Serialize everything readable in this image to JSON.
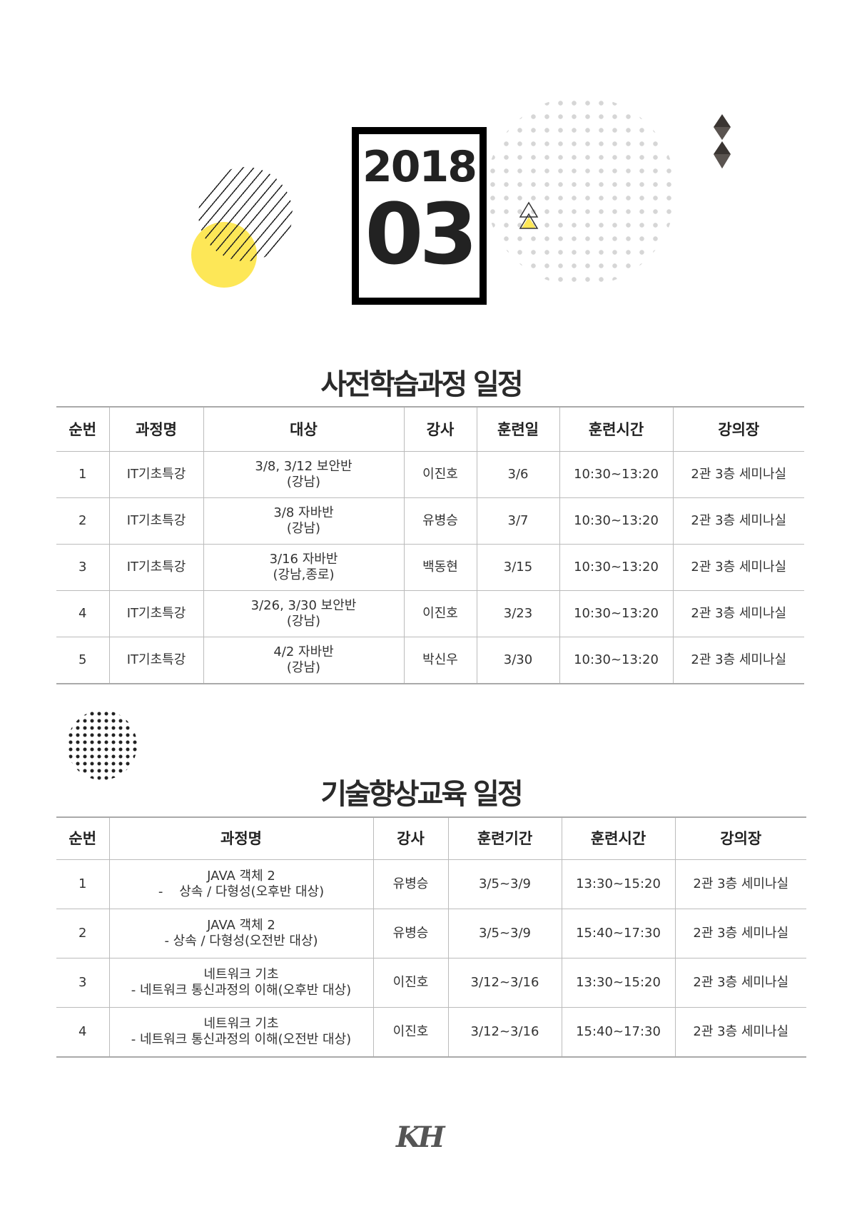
{
  "header": {
    "year": "2018",
    "month": "03"
  },
  "decor": {
    "accent_yellow": "#fde757",
    "dark": "#3a3532",
    "dot_gray": "#d6d6d6",
    "icons": [
      "diamond-icon",
      "triangle-icon"
    ]
  },
  "section1": {
    "title": "사전학습과정 일정",
    "columns": [
      "순번",
      "과정명",
      "대상",
      "강사",
      "훈련일",
      "훈련시간",
      "강의장"
    ],
    "rows": [
      {
        "no": "1",
        "course": "IT기초특강",
        "target1": "3/8, 3/12 보안반",
        "target2": "(강남)",
        "instructor": "이진호",
        "date": "3/6",
        "time": "10:30~13:20",
        "room": "2관 3층 세미나실"
      },
      {
        "no": "2",
        "course": "IT기초특강",
        "target1": "3/8  자바반",
        "target2": "(강남)",
        "instructor": "유병승",
        "date": "3/7",
        "time": "10:30~13:20",
        "room": "2관 3층 세미나실"
      },
      {
        "no": "3",
        "course": "IT기초특강",
        "target1": "3/16  자바반",
        "target2": "(강남,종로)",
        "instructor": "백동현",
        "date": "3/15",
        "time": "10:30~13:20",
        "room": "2관 3층 세미나실"
      },
      {
        "no": "4",
        "course": "IT기초특강",
        "target1": "3/26, 3/30 보안반",
        "target2": "(강남)",
        "instructor": "이진호",
        "date": "3/23",
        "time": "10:30~13:20",
        "room": "2관 3층 세미나실"
      },
      {
        "no": "5",
        "course": "IT기초특강",
        "target1": "4/2 자바반",
        "target2": "(강남)",
        "instructor": "박신우",
        "date": "3/30",
        "time": "10:30~13:20",
        "room": "2관 3층 세미나실"
      }
    ]
  },
  "section2": {
    "title": "기술향상교육 일정",
    "columns": [
      "순번",
      "과정명",
      "강사",
      "훈련기간",
      "훈련시간",
      "강의장"
    ],
    "rows": [
      {
        "no": "1",
        "course1": "JAVA 객체 2",
        "course2": "-    상속 / 다형성(오후반 대상)",
        "instructor": "유병승",
        "period": "3/5~3/9",
        "time": "13:30~15:20",
        "room": "2관 3층 세미나실"
      },
      {
        "no": "2",
        "course1": "JAVA 객체 2",
        "course2": "- 상속 / 다형성(오전반 대상)",
        "instructor": "유병승",
        "period": "3/5~3/9",
        "time": "15:40~17:30",
        "room": "2관 3층 세미나실"
      },
      {
        "no": "3",
        "course1": "네트워크 기초",
        "course2": "- 네트워크 통신과정의 이해(오후반 대상)",
        "instructor": "이진호",
        "period": "3/12~3/16",
        "time": "13:30~15:20",
        "room": "2관 3층 세미나실"
      },
      {
        "no": "4",
        "course1": "네트워크 기초",
        "course2": "- 네트워크 통신과정의 이해(오전반 대상)",
        "instructor": "이진호",
        "period": "3/12~3/16",
        "time": "15:40~17:30",
        "room": "2관 3층 세미나실"
      }
    ]
  },
  "footer": {
    "logo": "KH"
  }
}
